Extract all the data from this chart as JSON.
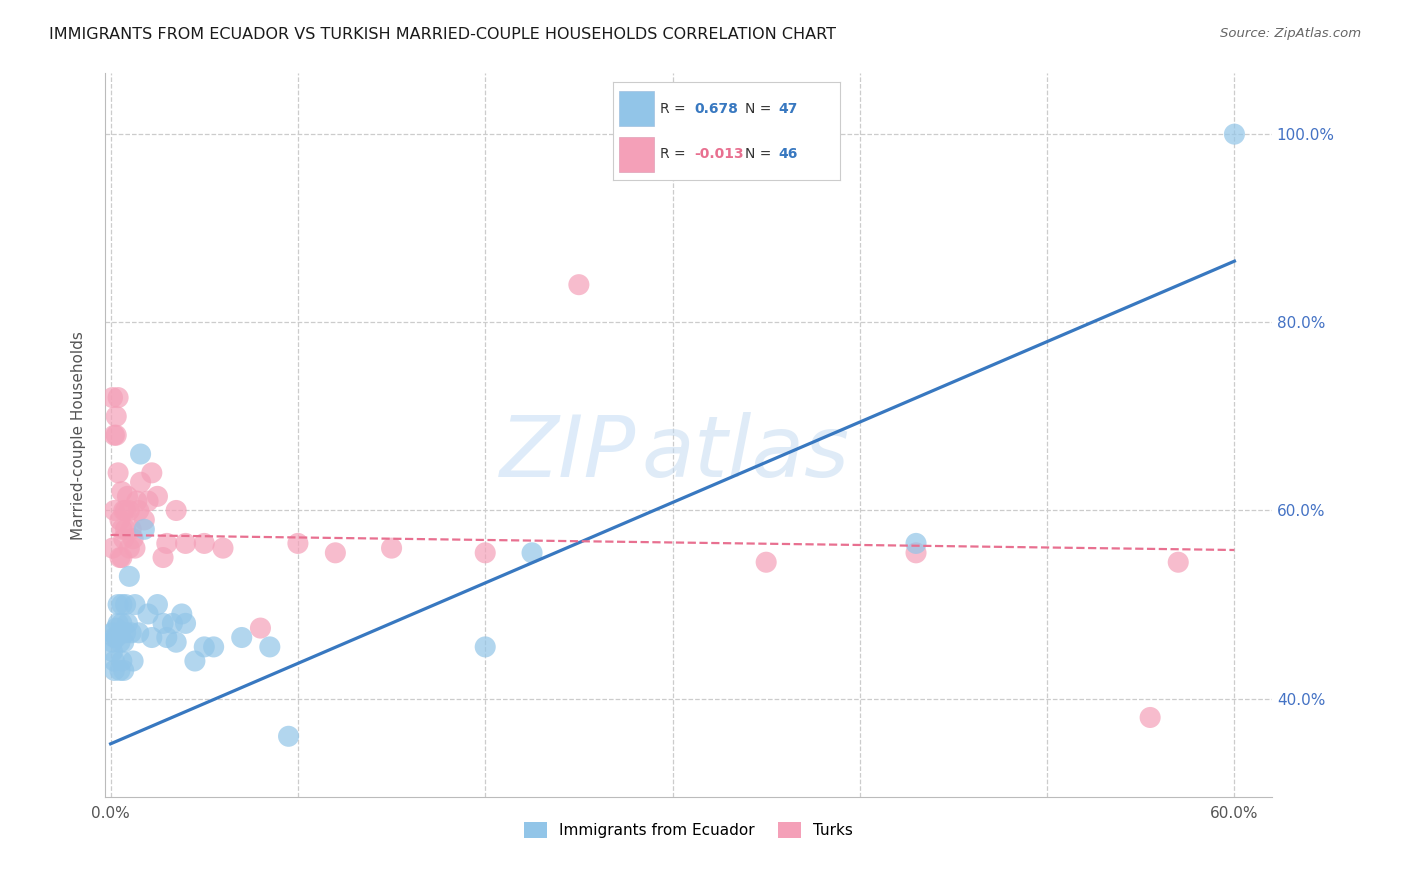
{
  "title": "IMMIGRANTS FROM ECUADOR VS TURKISH MARRIED-COUPLE HOUSEHOLDS CORRELATION CHART",
  "source": "Source: ZipAtlas.com",
  "ylabel": "Married-couple Households",
  "xlim": [
    -0.003,
    0.62
  ],
  "ylim": [
    0.295,
    1.065
  ],
  "yticks": [
    0.4,
    0.6,
    0.8,
    1.0
  ],
  "ytick_labels": [
    "40.0%",
    "60.0%",
    "80.0%",
    "100.0%"
  ],
  "xticks": [
    0.0,
    0.1,
    0.2,
    0.3,
    0.4,
    0.5,
    0.6
  ],
  "xtick_labels": [
    "0.0%",
    "",
    "",
    "",
    "",
    "",
    "60.0%"
  ],
  "blue_R": 0.678,
  "blue_N": 47,
  "pink_R": -0.013,
  "pink_N": 46,
  "blue_color": "#92C5E8",
  "pink_color": "#F4A0B8",
  "blue_line_color": "#3878C0",
  "pink_line_color": "#E87090",
  "grid_color": "#CCCCCC",
  "bg_color": "#FFFFFF",
  "watermark_zip": "ZIP",
  "watermark_atlas": "atlas",
  "legend_label_blue": "Immigrants from Ecuador",
  "legend_label_pink": "Turks",
  "blue_scatter_x": [
    0.001,
    0.001,
    0.001,
    0.002,
    0.002,
    0.002,
    0.003,
    0.003,
    0.004,
    0.004,
    0.005,
    0.005,
    0.005,
    0.006,
    0.006,
    0.006,
    0.007,
    0.007,
    0.008,
    0.008,
    0.009,
    0.01,
    0.011,
    0.012,
    0.013,
    0.015,
    0.016,
    0.018,
    0.02,
    0.022,
    0.025,
    0.028,
    0.03,
    0.033,
    0.035,
    0.038,
    0.04,
    0.045,
    0.05,
    0.055,
    0.07,
    0.085,
    0.095,
    0.2,
    0.225,
    0.43,
    0.6
  ],
  "blue_scatter_y": [
    0.47,
    0.46,
    0.45,
    0.465,
    0.44,
    0.43,
    0.465,
    0.475,
    0.48,
    0.5,
    0.46,
    0.47,
    0.43,
    0.48,
    0.44,
    0.5,
    0.46,
    0.43,
    0.5,
    0.47,
    0.48,
    0.53,
    0.47,
    0.44,
    0.5,
    0.47,
    0.66,
    0.58,
    0.49,
    0.465,
    0.5,
    0.48,
    0.465,
    0.48,
    0.46,
    0.49,
    0.48,
    0.44,
    0.455,
    0.455,
    0.465,
    0.455,
    0.36,
    0.455,
    0.555,
    0.565,
    1.0
  ],
  "pink_scatter_x": [
    0.001,
    0.001,
    0.002,
    0.002,
    0.003,
    0.003,
    0.004,
    0.004,
    0.005,
    0.005,
    0.006,
    0.006,
    0.006,
    0.007,
    0.007,
    0.008,
    0.008,
    0.009,
    0.01,
    0.01,
    0.011,
    0.012,
    0.013,
    0.014,
    0.015,
    0.016,
    0.018,
    0.02,
    0.022,
    0.025,
    0.028,
    0.03,
    0.035,
    0.04,
    0.05,
    0.06,
    0.08,
    0.1,
    0.12,
    0.15,
    0.2,
    0.25,
    0.35,
    0.43,
    0.555,
    0.57
  ],
  "pink_scatter_y": [
    0.56,
    0.72,
    0.6,
    0.68,
    0.7,
    0.68,
    0.64,
    0.72,
    0.55,
    0.59,
    0.58,
    0.55,
    0.62,
    0.57,
    0.6,
    0.58,
    0.6,
    0.615,
    0.56,
    0.6,
    0.58,
    0.57,
    0.56,
    0.61,
    0.6,
    0.63,
    0.59,
    0.61,
    0.64,
    0.615,
    0.55,
    0.565,
    0.6,
    0.565,
    0.565,
    0.56,
    0.475,
    0.565,
    0.555,
    0.56,
    0.555,
    0.84,
    0.545,
    0.555,
    0.38,
    0.545
  ],
  "blue_trend_x": [
    0.0,
    0.6
  ],
  "blue_trend_y": [
    0.352,
    0.865
  ],
  "pink_trend_x": [
    0.0,
    0.6
  ],
  "pink_trend_y": [
    0.574,
    0.558
  ]
}
